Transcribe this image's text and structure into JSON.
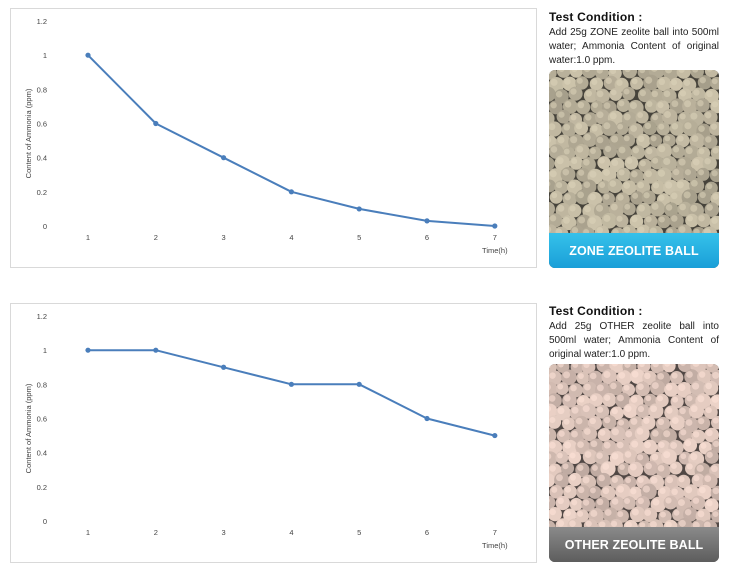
{
  "chart_data": [
    {
      "type": "line",
      "x": [
        "1",
        "2",
        "3",
        "4",
        "5",
        "6",
        "7"
      ],
      "series": [
        {
          "values": [
            1.0,
            0.6,
            0.4,
            0.2,
            0.1,
            0.03,
            0.0
          ]
        }
      ],
      "y_ticks": [
        "0",
        "0.2",
        "0.4",
        "0.6",
        "0.8",
        "1",
        "1.2"
      ],
      "xlabel": "Time(h)",
      "ylabel": "Content of Ammonia (ppm)",
      "ylim": [
        0,
        1.2
      ],
      "grid": false,
      "line_color": "#4a7ebb"
    },
    {
      "type": "line",
      "x": [
        "1",
        "2",
        "3",
        "4",
        "5",
        "6",
        "7"
      ],
      "series": [
        {
          "values": [
            1.0,
            1.0,
            0.9,
            0.8,
            0.8,
            0.6,
            0.5
          ]
        }
      ],
      "y_ticks": [
        "0",
        "0.2",
        "0.4",
        "0.6",
        "0.8",
        "1",
        "1.2"
      ],
      "xlabel": "Time(h)",
      "ylabel": "Content of Ammonia (ppm)",
      "ylim": [
        0,
        1.2
      ],
      "grid": false,
      "line_color": "#4a7ebb"
    }
  ],
  "panels": [
    {
      "condition_title": "Test Condition :",
      "condition_text": "Add 25g ZONE zeolite ball into 500ml water; Ammonia Content of original water:1.0 ppm.",
      "photo_label": "ZONE ZEOLITE BALL",
      "label_color": "#1aa3dc",
      "ball_color": "#c9c0a8"
    },
    {
      "condition_title": "Test Condition :",
      "condition_text": "Add 25g OTHER zeolite ball into 500ml water; Ammonia Content of original water:1.0 ppm.",
      "photo_label": "OTHER ZEOLITE BALL",
      "label_color": "#666666",
      "ball_color": "#e8cfc4"
    }
  ]
}
